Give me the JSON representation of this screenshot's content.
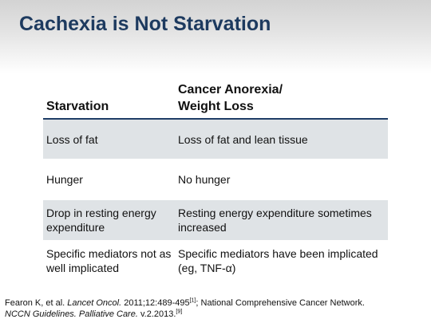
{
  "slide": {
    "title": "Cachexia is Not Starvation"
  },
  "table": {
    "headers": {
      "left": "Starvation",
      "right_line1": "Cancer Anorexia/",
      "right_line2": "Weight Loss"
    },
    "rows": [
      {
        "left": "Loss of fat",
        "right": "Loss of fat and lean tissue",
        "shaded": true
      },
      {
        "left": "Hunger",
        "right": "No hunger",
        "shaded": false
      },
      {
        "left": "Drop in resting energy expenditure",
        "right": "Resting energy expenditure sometimes increased",
        "shaded": true
      },
      {
        "left": "Specific mediators not as well implicated",
        "right": "Specific mediators have been implicated (eg, TNF-α)",
        "shaded": false
      }
    ]
  },
  "footer": {
    "ref1_authors": "Fearon K, et al.",
    "ref1_journal": "Lancet Oncol.",
    "ref1_details": "2011;12:489-495",
    "ref1_marker": "[1]",
    "separator": "; National Comprehensive Cancer Network.",
    "ref2_title": "NCCN Guidelines. Palliative Care.",
    "ref2_version": "v.2.2013.",
    "ref2_marker": "[9]"
  }
}
